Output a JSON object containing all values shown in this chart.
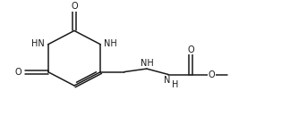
{
  "background_color": "#ffffff",
  "line_color": "#1a1a1a",
  "text_color": "#1a1a1a",
  "font_size": 7.0,
  "line_width": 1.1,
  "figsize": [
    3.24,
    1.48
  ],
  "dpi": 100,
  "xlim": [
    0,
    10
  ],
  "ylim": [
    0,
    5
  ]
}
